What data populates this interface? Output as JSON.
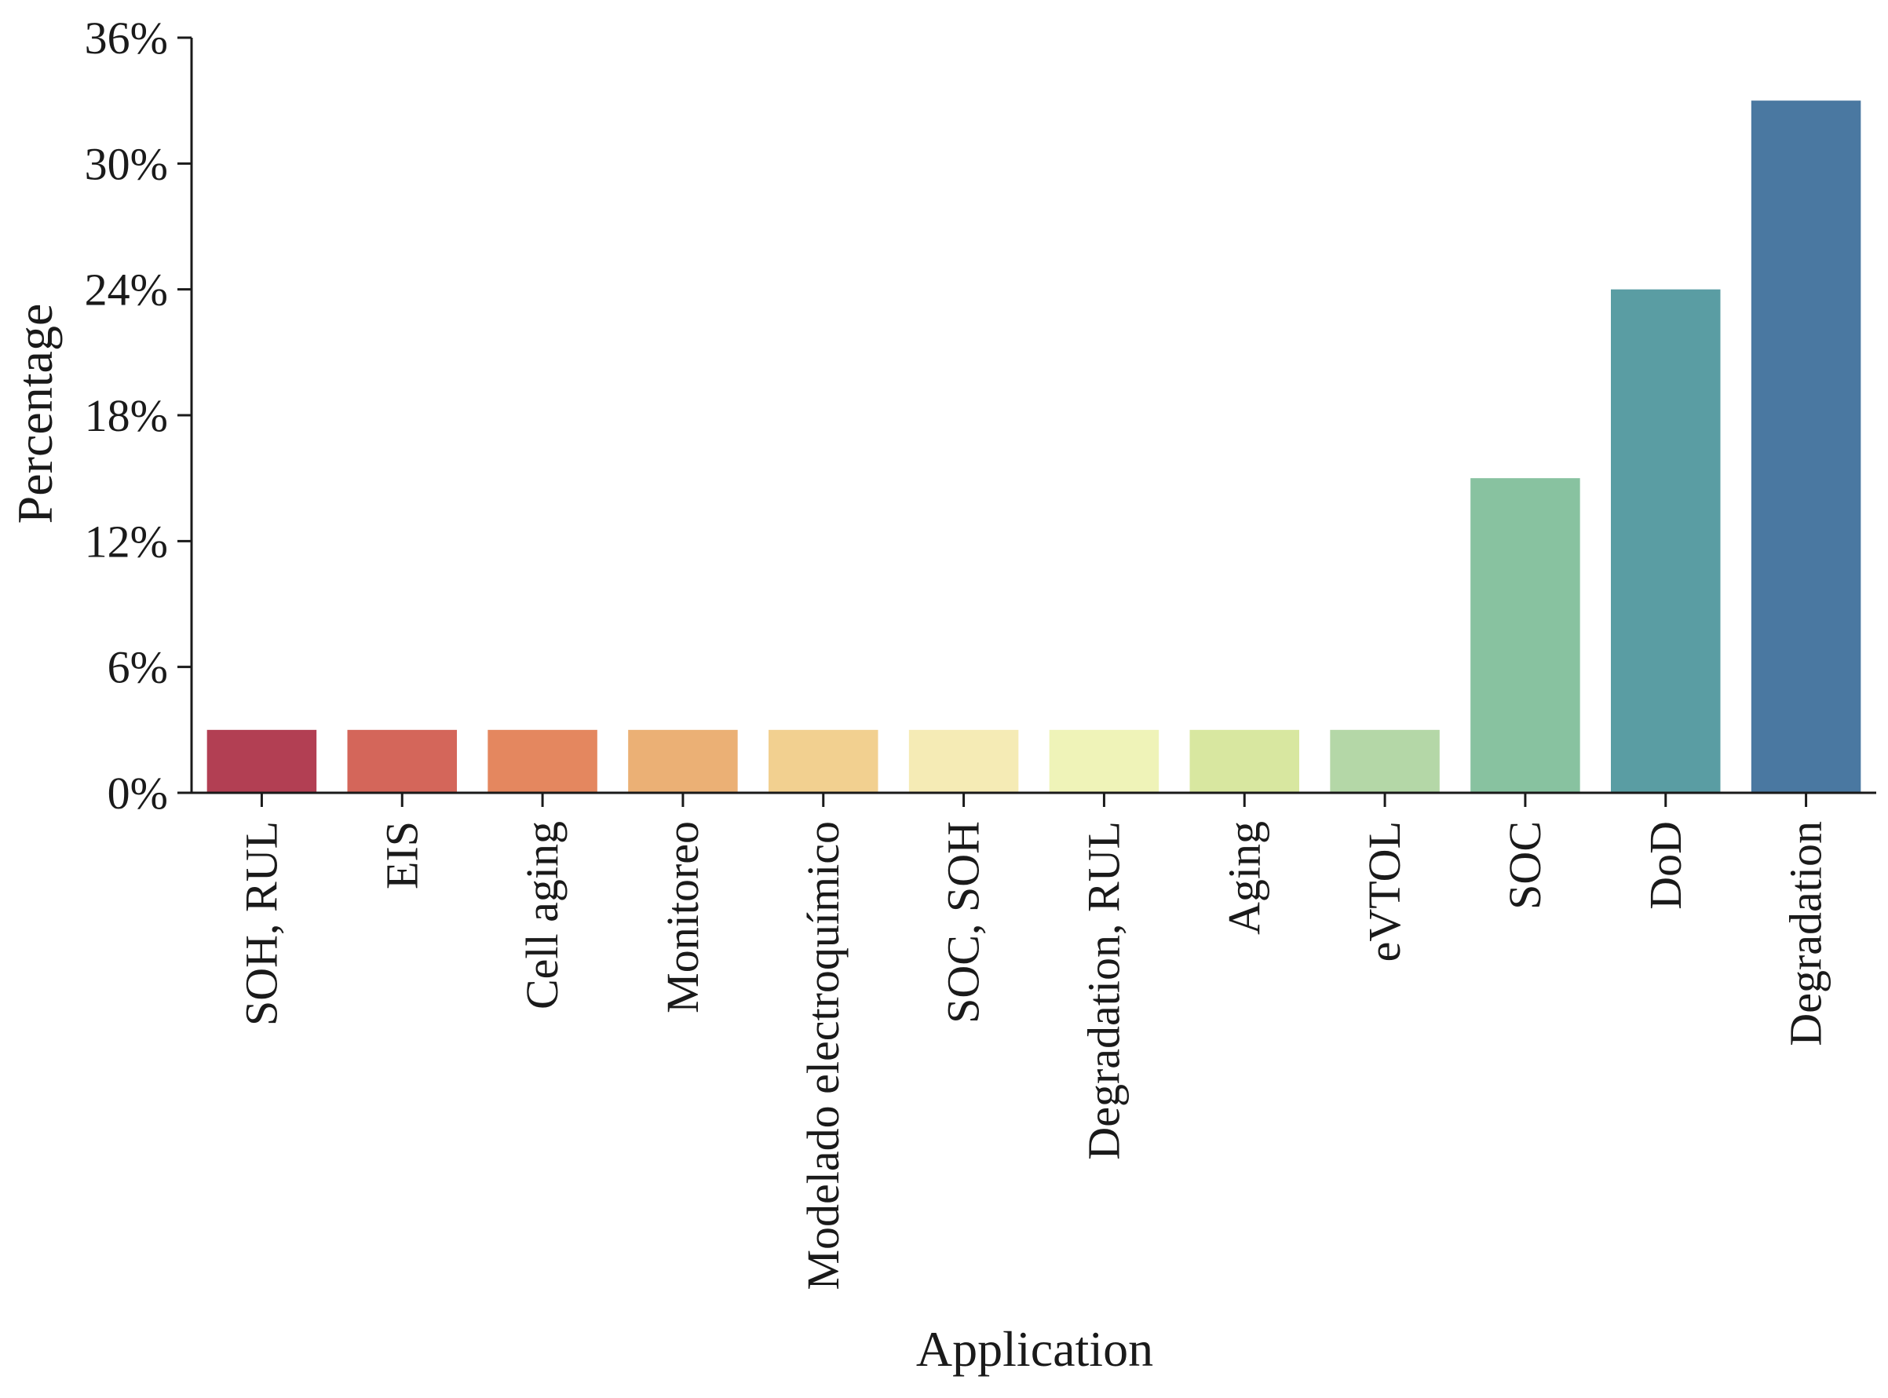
{
  "chart_data": {
    "type": "bar",
    "title": "",
    "xlabel": "Application",
    "ylabel": "Percentage",
    "ylim": [
      0,
      36
    ],
    "yticks": [
      0,
      6,
      12,
      18,
      24,
      30,
      36
    ],
    "ytick_labels": [
      "0%",
      "6%",
      "12%",
      "18%",
      "24%",
      "30%",
      "36%"
    ],
    "grid": false,
    "legend": "none",
    "categories": [
      "SOH, RUL",
      "EIS",
      "Cell aging",
      "Monitoreo",
      "Modelado electroquímico",
      "SOC, SOH",
      "Degradation, RUL",
      "Aging",
      "eVTOL",
      "SOC",
      "DoD",
      "Degradation"
    ],
    "values": [
      3,
      3,
      3,
      3,
      3,
      3,
      3,
      3,
      3,
      15,
      24,
      33
    ],
    "colors": [
      "#b23f53",
      "#d4665a",
      "#e4875f",
      "#ebb075",
      "#f2d090",
      "#f5ebb5",
      "#eff3b8",
      "#d8e7a0",
      "#b4d7a7",
      "#88c2a0",
      "#5a9da3",
      "#4a78a1"
    ]
  }
}
